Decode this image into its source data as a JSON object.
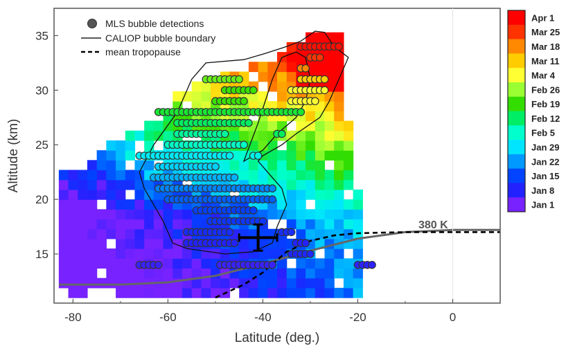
{
  "chart_data": {
    "type": "heatmap",
    "xlabel": "Latitude (deg.)",
    "ylabel": "Altitude (km)",
    "xlim": [
      -84,
      10
    ],
    "ylim": [
      10.5,
      37.5
    ],
    "x_ticks": [
      -80,
      -60,
      -40,
      -20,
      0
    ],
    "y_ticks": [
      15,
      20,
      25,
      30,
      35
    ],
    "legend": {
      "placement": "top-left",
      "entries": [
        {
          "label": "MLS  bubble detections",
          "marker": "circle"
        },
        {
          "label": "CALIOP bubble boundary",
          "marker": "solid-line"
        },
        {
          "label": "mean tropopause",
          "marker": "dashed-line"
        }
      ]
    },
    "annotation": "380 K",
    "colorbar": {
      "labels": [
        "Apr 1",
        "Mar 25",
        "Mar 18",
        "Mar 11",
        "Mar 4",
        "Feb 26",
        "Feb 19",
        "Feb 12",
        "Feb 5",
        "Jan 29",
        "Jan 22",
        "Jan 15",
        "Jan 8",
        "Jan 1"
      ],
      "colors": [
        "#ff0000",
        "#ff3300",
        "#ff8800",
        "#ffcc00",
        "#ffff33",
        "#99ff33",
        "#33dd00",
        "#00ee66",
        "#00ffcc",
        "#00e5ff",
        "#0099ff",
        "#0044ff",
        "#2222ff",
        "#7722ff"
      ]
    },
    "heatmap_color_range": [
      "Jan 1",
      "Apr 1"
    ],
    "mls_detections": [
      {
        "altitude": 34,
        "lat_range": [
          -32,
          -24
        ],
        "date": "Mar 30"
      },
      {
        "altitude": 33,
        "lat_range": [
          -30,
          -28
        ],
        "date": "Mar 25"
      },
      {
        "altitude": 32,
        "lat_range": [
          -32,
          -31
        ],
        "date": "Mar 18"
      },
      {
        "altitude": 31,
        "lat_range": [
          -52,
          -45
        ],
        "date": "Feb 22"
      },
      {
        "altitude": 31,
        "lat_range": [
          -32,
          -27
        ],
        "date": "Mar 11"
      },
      {
        "altitude": 30,
        "lat_range": [
          -48,
          -42
        ],
        "date": "Feb 19"
      },
      {
        "altitude": 30,
        "lat_range": [
          -34,
          -27
        ],
        "date": "Mar 4"
      },
      {
        "altitude": 29,
        "lat_range": [
          -50,
          -44
        ],
        "date": "Feb 19"
      },
      {
        "altitude": 29,
        "lat_range": [
          -34,
          -29
        ],
        "date": "Mar 4"
      },
      {
        "altitude": 28,
        "lat_range": [
          -62,
          -36
        ],
        "date": "Feb 15"
      },
      {
        "altitude": 28,
        "lat_range": [
          -35,
          -32
        ],
        "date": "Feb 15"
      },
      {
        "altitude": 27,
        "lat_range": [
          -58,
          -43
        ],
        "date": "Feb 12"
      },
      {
        "altitude": 26,
        "lat_range": [
          -58,
          -48
        ],
        "date": "Feb 8"
      },
      {
        "altitude": 26,
        "lat_range": [
          -37,
          -36
        ],
        "date": "Feb 12"
      },
      {
        "altitude": 25,
        "lat_range": [
          -60,
          -44
        ],
        "date": "Feb 5"
      },
      {
        "altitude": 24,
        "lat_range": [
          -66,
          -47
        ],
        "date": "Jan 30"
      },
      {
        "altitude": 24,
        "lat_range": [
          -42,
          -41
        ],
        "date": "Feb 1"
      },
      {
        "altitude": 23,
        "lat_range": [
          -62,
          -50
        ],
        "date": "Jan 27"
      },
      {
        "altitude": 22,
        "lat_range": [
          -63,
          -46
        ],
        "date": "Jan 24"
      },
      {
        "altitude": 21,
        "lat_range": [
          -62,
          -38
        ],
        "date": "Jan 20"
      },
      {
        "altitude": 20,
        "lat_range": [
          -60,
          -38
        ],
        "date": "Jan 17"
      },
      {
        "altitude": 19,
        "lat_range": [
          -54,
          -42
        ],
        "date": "Jan 14"
      },
      {
        "altitude": 18,
        "lat_range": [
          -51,
          -40
        ],
        "date": "Jan 12"
      },
      {
        "altitude": 17,
        "lat_range": [
          -56,
          -47
        ],
        "date": "Jan 10"
      },
      {
        "altitude": 17,
        "lat_range": [
          -36,
          -34
        ],
        "date": "Jan 10"
      },
      {
        "altitude": 16,
        "lat_range": [
          -56,
          -46
        ],
        "date": "Jan 8"
      },
      {
        "altitude": 16,
        "lat_range": [
          -33,
          -31
        ],
        "date": "Jan 8"
      },
      {
        "altitude": 15,
        "lat_range": [
          -34,
          -30
        ],
        "date": "Jan 9"
      },
      {
        "altitude": 14,
        "lat_range": [
          -66,
          -62
        ],
        "date": "Jan 6"
      },
      {
        "altitude": 14,
        "lat_range": [
          -49,
          -38
        ],
        "date": "Jan 6"
      },
      {
        "altitude": 14,
        "lat_range": [
          -20,
          -17
        ],
        "date": "Jan 7"
      }
    ],
    "mean_position": {
      "lat": -41,
      "altitude": 16.5,
      "lat_error": 4,
      "alt_error": 1.2
    },
    "potential_temperature_380K": [
      [
        -83,
        12.2
      ],
      [
        -70,
        12.2
      ],
      [
        -60,
        12.4
      ],
      [
        -50,
        13.0
      ],
      [
        -40,
        14.1
      ],
      [
        -30,
        15.3
      ],
      [
        -20,
        16.4
      ],
      [
        -10,
        17.0
      ],
      [
        0,
        17.2
      ],
      [
        10,
        17.2
      ]
    ],
    "mean_tropopause": [
      [
        -50,
        11.0
      ],
      [
        -44,
        12.2
      ],
      [
        -40,
        13.3
      ],
      [
        -35,
        15.2
      ],
      [
        -30,
        16.2
      ],
      [
        -25,
        16.7
      ],
      [
        -20,
        16.9
      ],
      [
        -10,
        17.0
      ],
      [
        0,
        17.0
      ],
      [
        10,
        17.0
      ]
    ]
  }
}
